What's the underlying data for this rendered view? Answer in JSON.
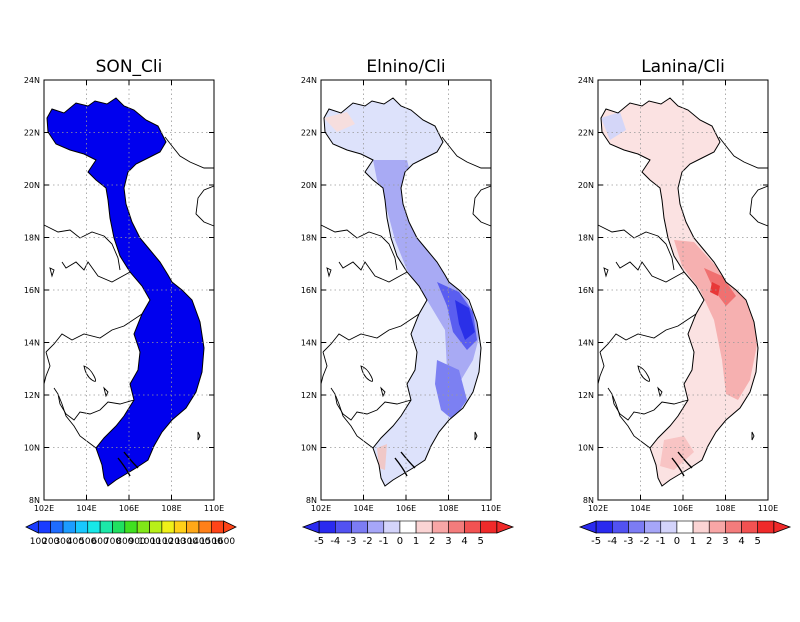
{
  "panels": [
    {
      "title": "SON_Cli",
      "fill": "#0000ee",
      "colorbar_labels": [
        "100",
        "200",
        "300",
        "400",
        "500",
        "600",
        "700",
        "800",
        "900",
        "1000",
        "1100",
        "1200",
        "1300",
        "1400",
        "1500",
        "1600"
      ]
    },
    {
      "title": "Elnino/Cli",
      "fill": "#dde2fb",
      "colorbar_labels": [
        "-5",
        "-4",
        "-3",
        "-2",
        "-1",
        "0",
        "1",
        "2",
        "3",
        "4",
        "5"
      ]
    },
    {
      "title": "Lanina/Cli",
      "fill": "#fbe2e2",
      "colorbar_labels": [
        "-5",
        "-4",
        "-3",
        "-2",
        "-1",
        "0",
        "1",
        "2",
        "3",
        "4",
        "5"
      ]
    }
  ],
  "axes": {
    "y_labels": [
      "24N",
      "22N",
      "20N",
      "18N",
      "16N",
      "14N",
      "12N",
      "10N",
      "8N"
    ],
    "x_labels": [
      "102E",
      "104E",
      "106E",
      "108E",
      "110E"
    ]
  },
  "colorbars": {
    "son_colors": [
      "#1a3cff",
      "#1e6cff",
      "#1c9cff",
      "#18c8ff",
      "#18e8e8",
      "#1ce8a8",
      "#20e060",
      "#40e020",
      "#80e818",
      "#b8f018",
      "#f0f018",
      "#ffd018",
      "#ffa818",
      "#ff8018",
      "#ff4418"
    ],
    "diff_colors": [
      "#2a2af0",
      "#5252f2",
      "#7c7cf4",
      "#a6a6f8",
      "#d4d4fb",
      "#ffffff",
      "#fbd4d4",
      "#f8a6a6",
      "#f47c7c",
      "#f25252",
      "#f02a2a"
    ]
  }
}
